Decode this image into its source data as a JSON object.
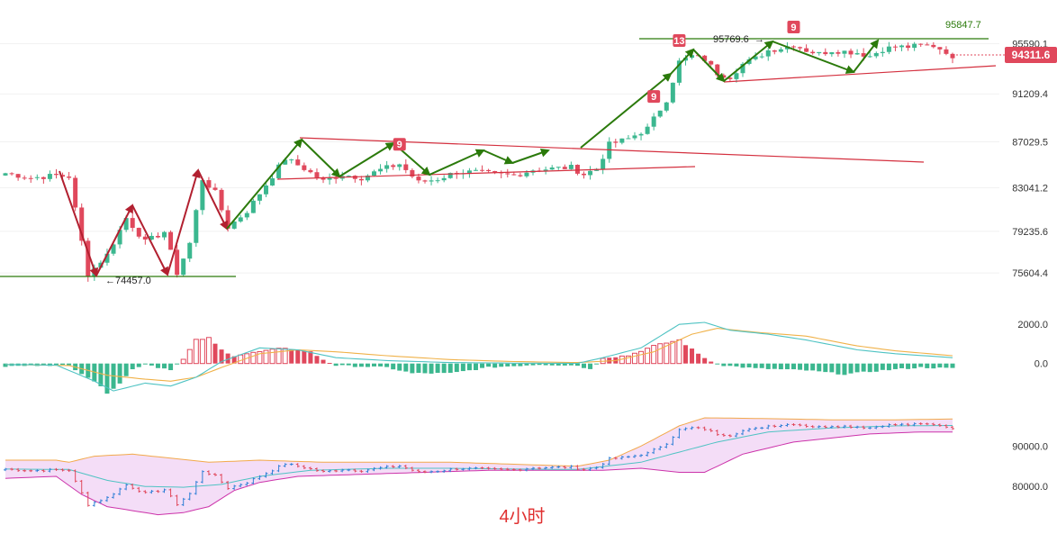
{
  "caption": "4小时",
  "chart_data": [
    {
      "type": "candlestick",
      "panel": "price",
      "y_axis_ticks": [
        95590.1,
        91209.4,
        87029.5,
        83041.2,
        79235.6,
        75604.4
      ],
      "ylim": [
        73500,
        97500
      ],
      "last_price": {
        "text": "94311.6",
        "value": 94311.6,
        "color": "#e0485c"
      },
      "annotations": [
        {
          "text": "95847.7",
          "value": 95847.7,
          "color": "#2b7a0b"
        },
        {
          "text": "95769.6",
          "value": 95769.6
        },
        {
          "text": "74457.0",
          "value": 74457.0
        }
      ],
      "td_markers": [
        {
          "text": "9",
          "bar": 62
        },
        {
          "text": "9",
          "bar": 102
        },
        {
          "text": "13",
          "bar": 106
        },
        {
          "text": "9",
          "bar": 124
        }
      ],
      "bar_count": 150,
      "close_path": [
        [
          0,
          84300
        ],
        [
          4,
          83900
        ],
        [
          8,
          84100
        ],
        [
          10,
          84000
        ],
        [
          13,
          75500
        ],
        [
          16,
          77200
        ],
        [
          19,
          80400
        ],
        [
          22,
          78300
        ],
        [
          25,
          79200
        ],
        [
          27,
          75600
        ],
        [
          29,
          78200
        ],
        [
          31,
          83800
        ],
        [
          33,
          82600
        ],
        [
          35,
          79600
        ],
        [
          38,
          81000
        ],
        [
          41,
          83300
        ],
        [
          44,
          85600
        ],
        [
          47,
          84700
        ],
        [
          50,
          83600
        ],
        [
          53,
          84200
        ],
        [
          56,
          83900
        ],
        [
          59,
          84600
        ],
        [
          62,
          85100
        ],
        [
          65,
          83500
        ],
        [
          68,
          83800
        ],
        [
          71,
          84400
        ],
        [
          74,
          84400
        ],
        [
          77,
          84200
        ],
        [
          80,
          84100
        ],
        [
          83,
          84600
        ],
        [
          86,
          84700
        ],
        [
          89,
          84800
        ],
        [
          91,
          84200
        ],
        [
          93,
          84700
        ],
        [
          95,
          86800
        ],
        [
          98,
          87300
        ],
        [
          101,
          88200
        ],
        [
          104,
          90700
        ],
        [
          106,
          94000
        ],
        [
          108,
          94500
        ],
        [
          110,
          94200
        ],
        [
          112,
          93000
        ],
        [
          114,
          92700
        ],
        [
          116,
          93800
        ],
        [
          118,
          94300
        ],
        [
          120,
          95000
        ],
        [
          122,
          95200
        ],
        [
          124,
          95500
        ],
        [
          126,
          95000
        ],
        [
          128,
          94700
        ],
        [
          130,
          95000
        ],
        [
          132,
          94900
        ],
        [
          134,
          94800
        ],
        [
          136,
          94500
        ],
        [
          138,
          95100
        ],
        [
          140,
          95300
        ],
        [
          142,
          95300
        ],
        [
          144,
          95400
        ],
        [
          146,
          95400
        ],
        [
          148,
          94900
        ],
        [
          149,
          94311.6
        ]
      ]
    },
    {
      "type": "histogram",
      "panel": "macd",
      "y_axis_ticks": [
        2000.0,
        0.0
      ],
      "ylim": [
        -1900,
        2700
      ],
      "colors": {
        "positive": "#e0485c",
        "negative": "#3bb78f",
        "dif": "#4fc3c3",
        "dea": "#f0b24a"
      },
      "hist_path": [
        [
          0,
          -150
        ],
        [
          6,
          -80
        ],
        [
          10,
          -100
        ],
        [
          14,
          -900
        ],
        [
          16,
          -1500
        ],
        [
          18,
          -1000
        ],
        [
          20,
          -300
        ],
        [
          22,
          0
        ],
        [
          24,
          -200
        ],
        [
          26,
          -300
        ],
        [
          28,
          200
        ],
        [
          30,
          1200
        ],
        [
          32,
          1300
        ],
        [
          34,
          700
        ],
        [
          36,
          400
        ],
        [
          40,
          600
        ],
        [
          44,
          800
        ],
        [
          48,
          600
        ],
        [
          50,
          200
        ],
        [
          52,
          -100
        ],
        [
          60,
          -200
        ],
        [
          64,
          -500
        ],
        [
          70,
          -500
        ],
        [
          76,
          -200
        ],
        [
          84,
          -50
        ],
        [
          90,
          -100
        ],
        [
          92,
          -300
        ],
        [
          94,
          300
        ],
        [
          98,
          400
        ],
        [
          102,
          900
        ],
        [
          106,
          1200
        ],
        [
          109,
          500
        ],
        [
          111,
          100
        ],
        [
          113,
          -100
        ],
        [
          118,
          -250
        ],
        [
          126,
          -350
        ],
        [
          132,
          -550
        ],
        [
          138,
          -350
        ],
        [
          144,
          -200
        ],
        [
          149,
          -250
        ]
      ],
      "dif_path": [
        [
          0,
          -50
        ],
        [
          8,
          -80
        ],
        [
          14,
          -900
        ],
        [
          17,
          -1400
        ],
        [
          22,
          -1000
        ],
        [
          26,
          -1150
        ],
        [
          30,
          -700
        ],
        [
          34,
          100
        ],
        [
          40,
          800
        ],
        [
          46,
          700
        ],
        [
          52,
          300
        ],
        [
          60,
          150
        ],
        [
          70,
          50
        ],
        [
          80,
          20
        ],
        [
          90,
          10
        ],
        [
          94,
          300
        ],
        [
          100,
          800
        ],
        [
          106,
          2000
        ],
        [
          110,
          2100
        ],
        [
          114,
          1700
        ],
        [
          120,
          1500
        ],
        [
          126,
          1200
        ],
        [
          134,
          700
        ],
        [
          140,
          500
        ],
        [
          149,
          300
        ]
      ],
      "dea_path": [
        [
          0,
          -50
        ],
        [
          10,
          -100
        ],
        [
          16,
          -600
        ],
        [
          22,
          -800
        ],
        [
          26,
          -900
        ],
        [
          30,
          -700
        ],
        [
          34,
          -200
        ],
        [
          40,
          500
        ],
        [
          46,
          700
        ],
        [
          52,
          600
        ],
        [
          60,
          400
        ],
        [
          70,
          200
        ],
        [
          80,
          100
        ],
        [
          90,
          50
        ],
        [
          96,
          150
        ],
        [
          102,
          600
        ],
        [
          108,
          1500
        ],
        [
          112,
          1800
        ],
        [
          118,
          1600
        ],
        [
          126,
          1400
        ],
        [
          134,
          900
        ],
        [
          140,
          650
        ],
        [
          149,
          400
        ]
      ]
    },
    {
      "type": "bollinger",
      "panel": "bands",
      "y_axis_ticks": [
        90000.0,
        80000.0
      ],
      "ylim": [
        70000,
        99000
      ],
      "colors": {
        "upper": "#f2a94b",
        "lower": "#cc33aa",
        "middle": "#4fc3c3",
        "fill": "#f4ddf7",
        "ohlc": "#2f7fd6"
      },
      "upper_path": [
        [
          0,
          86500
        ],
        [
          8,
          86500
        ],
        [
          10,
          86000
        ],
        [
          14,
          87500
        ],
        [
          20,
          88000
        ],
        [
          26,
          87000
        ],
        [
          32,
          86000
        ],
        [
          40,
          86500
        ],
        [
          50,
          86000
        ],
        [
          60,
          86000
        ],
        [
          70,
          86000
        ],
        [
          80,
          85500
        ],
        [
          90,
          85000
        ],
        [
          95,
          86500
        ],
        [
          100,
          90000
        ],
        [
          106,
          95000
        ],
        [
          110,
          97000
        ],
        [
          120,
          96800
        ],
        [
          130,
          96500
        ],
        [
          140,
          96500
        ],
        [
          149,
          96700
        ]
      ],
      "lower_path": [
        [
          0,
          82000
        ],
        [
          8,
          82500
        ],
        [
          12,
          78000
        ],
        [
          16,
          75000
        ],
        [
          20,
          74000
        ],
        [
          24,
          73000
        ],
        [
          28,
          73500
        ],
        [
          32,
          75000
        ],
        [
          36,
          79000
        ],
        [
          40,
          81000
        ],
        [
          46,
          82500
        ],
        [
          56,
          83000
        ],
        [
          66,
          83500
        ],
        [
          76,
          84000
        ],
        [
          86,
          84000
        ],
        [
          94,
          84000
        ],
        [
          100,
          84500
        ],
        [
          106,
          83500
        ],
        [
          110,
          83500
        ],
        [
          116,
          88000
        ],
        [
          124,
          91000
        ],
        [
          130,
          92000
        ],
        [
          136,
          93000
        ],
        [
          144,
          93500
        ],
        [
          149,
          93500
        ]
      ],
      "middle_path": [
        [
          0,
          84300
        ],
        [
          10,
          84200
        ],
        [
          16,
          81500
        ],
        [
          22,
          80000
        ],
        [
          28,
          79800
        ],
        [
          34,
          80500
        ],
        [
          40,
          82500
        ],
        [
          48,
          84000
        ],
        [
          60,
          84500
        ],
        [
          70,
          84500
        ],
        [
          80,
          84300
        ],
        [
          90,
          84200
        ],
        [
          100,
          86000
        ],
        [
          106,
          88500
        ],
        [
          112,
          91000
        ],
        [
          120,
          93500
        ],
        [
          130,
          94500
        ],
        [
          140,
          95000
        ],
        [
          149,
          95100
        ]
      ]
    }
  ]
}
